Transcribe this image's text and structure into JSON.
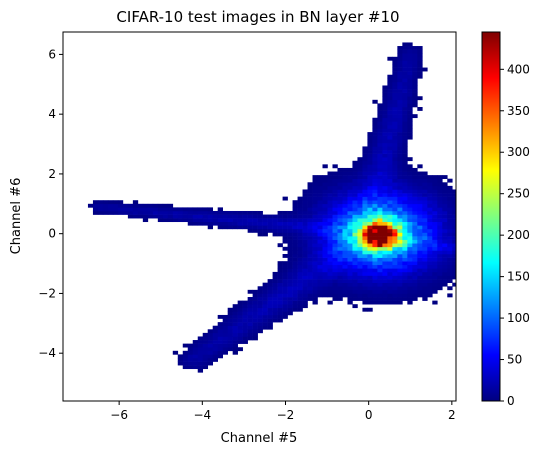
{
  "chart_data": {
    "type": "heatmap",
    "title": "CIFAR-10 test images in BN layer #10",
    "xlabel": "Channel #5",
    "ylabel": "Channel #6",
    "xlim": [
      -7.35,
      2.1
    ],
    "ylim": [
      -5.6,
      6.75
    ],
    "xticks": [
      -6,
      -4,
      -2,
      0,
      2
    ],
    "yticks": [
      -4,
      -2,
      0,
      2,
      4,
      6
    ],
    "colormap": "jet",
    "colorbar": {
      "min": 0,
      "max": 445,
      "ticks": [
        0,
        50,
        100,
        150,
        200,
        250,
        300,
        350,
        400
      ],
      "stops": [
        "#00007f",
        "#0000ff",
        "#007fff",
        "#00ffff",
        "#7fff7f",
        "#ffff00",
        "#ff7f00",
        "#ff0000",
        "#7f0000"
      ]
    },
    "bin_size": [
      0.12,
      0.12
    ],
    "grid": false,
    "density_components": [
      {
        "name": "core",
        "x0": 0.25,
        "y0": -0.05,
        "x1": 0.25,
        "y1": -0.05,
        "peak": 445,
        "sigma": 0.28
      },
      {
        "name": "core-halo",
        "x0": 0.3,
        "y0": 0.0,
        "x1": 0.3,
        "y1": 0.0,
        "peak": 150,
        "sigma": 0.75
      },
      {
        "name": "upper-arm",
        "x0": 0.0,
        "y0": 0.5,
        "x1": 1.0,
        "y1": 6.0,
        "peak": 18,
        "sigma": 0.28
      },
      {
        "name": "left-arm",
        "x0": -0.5,
        "y0": 0.1,
        "x1": -6.5,
        "y1": 0.9,
        "peak": 16,
        "sigma": 0.17
      },
      {
        "name": "lower-arm",
        "x0": -0.5,
        "y0": -0.5,
        "x1": -4.2,
        "y1": -4.2,
        "peak": 18,
        "sigma": 0.32
      },
      {
        "name": "right-arm",
        "x0": 0.7,
        "y0": -0.2,
        "x1": 2.1,
        "y1": -0.5,
        "peak": 30,
        "sigma": 0.2
      }
    ]
  }
}
